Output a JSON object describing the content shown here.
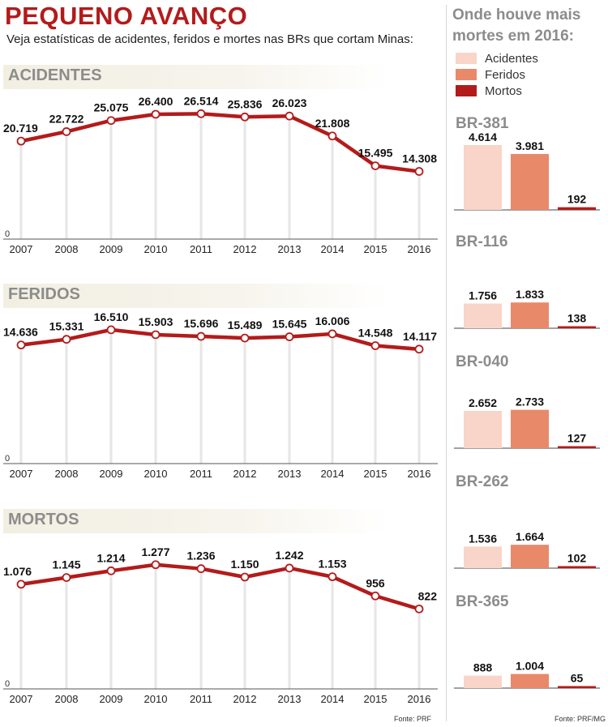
{
  "header": {
    "title": "PEQUENO AVANÇO",
    "subtitle": "Veja estatísticas de acidentes, feridos e mortes nas BRs que cortam Minas:"
  },
  "colors": {
    "line": "#b31b1b",
    "acidentes": "#f8d5c8",
    "feridos": "#e8896a",
    "mortos": "#b31b1b"
  },
  "chart_data": [
    {
      "type": "line",
      "title": "ACIDENTES",
      "x": [
        "2007",
        "2008",
        "2009",
        "2010",
        "2011",
        "2012",
        "2013",
        "2014",
        "2015",
        "2016"
      ],
      "y": [
        20719,
        22722,
        25075,
        26400,
        26514,
        25836,
        26023,
        21808,
        15495,
        14308
      ],
      "labels": [
        "20.719",
        "22.722",
        "25.075",
        "26.400",
        "26.514",
        "25.836",
        "26.023",
        "21.808",
        "15.495",
        "14.308"
      ],
      "ylim": [
        0,
        30000
      ],
      "zero_label": "0",
      "grid": true
    },
    {
      "type": "line",
      "title": "FERIDOS",
      "x": [
        "2007",
        "2008",
        "2009",
        "2010",
        "2011",
        "2012",
        "2013",
        "2014",
        "2015",
        "2016"
      ],
      "y": [
        14636,
        15331,
        16510,
        15903,
        15696,
        15489,
        15645,
        16006,
        14548,
        14117
      ],
      "labels": [
        "14.636",
        "15.331",
        "16.510",
        "15.903",
        "15.696",
        "15.489",
        "15.645",
        "16.006",
        "14.548",
        "14.117"
      ],
      "ylim": [
        0,
        18000
      ],
      "zero_label": "0",
      "grid": true
    },
    {
      "type": "line",
      "title": "MORTOS",
      "x": [
        "2007",
        "2008",
        "2009",
        "2010",
        "2011",
        "2012",
        "2013",
        "2014",
        "2015",
        "2016"
      ],
      "y": [
        1076,
        1145,
        1214,
        1277,
        1236,
        1150,
        1242,
        1153,
        956,
        822
      ],
      "labels": [
        "1.076",
        "1.145",
        "1.214",
        "1.277",
        "1.236",
        "1.150",
        "1.242",
        "1.153",
        "956",
        "822"
      ],
      "ylim": [
        0,
        1500
      ],
      "zero_label": "0",
      "grid": true
    },
    {
      "type": "bar",
      "title": "Onde houve mais mortes em 2016:",
      "legend": [
        "Acidentes",
        "Feridos",
        "Mortos"
      ],
      "legend_position": "top",
      "groups": [
        {
          "name": "BR-381",
          "values": [
            4614,
            3981,
            192
          ],
          "labels": [
            "4.614",
            "3.981",
            "192"
          ]
        },
        {
          "name": "BR-116",
          "values": [
            1756,
            1833,
            138
          ],
          "labels": [
            "1.756",
            "1.833",
            "138"
          ]
        },
        {
          "name": "BR-040",
          "values": [
            2652,
            2733,
            127
          ],
          "labels": [
            "2.652",
            "2.733",
            "127"
          ]
        },
        {
          "name": "BR-262",
          "values": [
            1536,
            1664,
            102
          ],
          "labels": [
            "1.536",
            "1.664",
            "102"
          ]
        },
        {
          "name": "BR-365",
          "values": [
            888,
            1004,
            65
          ],
          "labels": [
            "888",
            "1.004",
            "65"
          ]
        }
      ]
    }
  ],
  "sources": {
    "left": "Fonte: PRF",
    "right": "Fonte: PRF/MG"
  }
}
